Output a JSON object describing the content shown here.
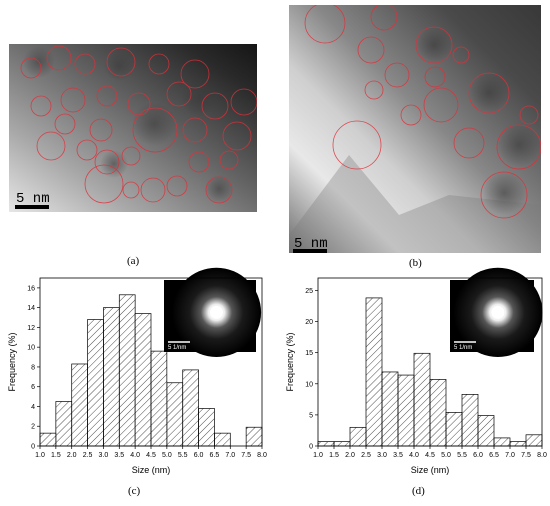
{
  "panels": {
    "a": {
      "label": "(a)",
      "scale_bar": "5 nm"
    },
    "b": {
      "label": "(b)",
      "scale_bar": "5 nm"
    },
    "c": {
      "label": "(c)",
      "inset_scale": "5 1/nm"
    },
    "d": {
      "label": "(d)",
      "inset_scale": "5 1/nm"
    }
  },
  "chart_data": [
    {
      "type": "bar",
      "panel": "c",
      "xlabel": "Size (nm)",
      "ylabel": "Frequency (%)",
      "xlim": [
        1.0,
        8.0
      ],
      "ylim": [
        0,
        17
      ],
      "xticks": [
        "1.0",
        "1.5",
        "2.0",
        "2.5",
        "3.0",
        "3.5",
        "4.0",
        "4.5",
        "5.0",
        "5.5",
        "6.0",
        "6.5",
        "7.0",
        "7.5",
        "8.0"
      ],
      "yticks": [
        "0",
        "2",
        "4",
        "6",
        "8",
        "10",
        "12",
        "14",
        "16"
      ],
      "bin_width": 0.5,
      "bin_starts": [
        1.0,
        1.5,
        2.0,
        2.5,
        3.0,
        3.5,
        4.0,
        4.5,
        5.0,
        5.5,
        6.0,
        6.5,
        7.0,
        7.5
      ],
      "values": [
        1.3,
        4.5,
        8.3,
        12.8,
        14.0,
        15.3,
        13.4,
        9.6,
        6.4,
        7.7,
        3.8,
        1.3,
        0,
        1.9
      ]
    },
    {
      "type": "bar",
      "panel": "d",
      "xlabel": "Size (nm)",
      "ylabel": "Frequency (%)",
      "xlim": [
        1.0,
        8.0
      ],
      "ylim": [
        0,
        27
      ],
      "xticks": [
        "1.0",
        "1.5",
        "2.0",
        "2.5",
        "3.0",
        "3.5",
        "4.0",
        "4.5",
        "5.0",
        "5.5",
        "6.0",
        "6.5",
        "7.0",
        "7.5",
        "8.0"
      ],
      "yticks": [
        "0",
        "5",
        "10",
        "15",
        "20",
        "25"
      ],
      "bin_width": 0.5,
      "bin_starts": [
        1.0,
        1.5,
        2.0,
        2.5,
        3.0,
        3.5,
        4.0,
        4.5,
        5.0,
        5.5,
        6.0,
        6.5,
        7.0,
        7.5
      ],
      "values": [
        0.7,
        0.7,
        3.0,
        23.8,
        11.9,
        11.4,
        14.9,
        10.7,
        5.4,
        8.3,
        4.9,
        1.3,
        0.7,
        1.8
      ]
    }
  ]
}
